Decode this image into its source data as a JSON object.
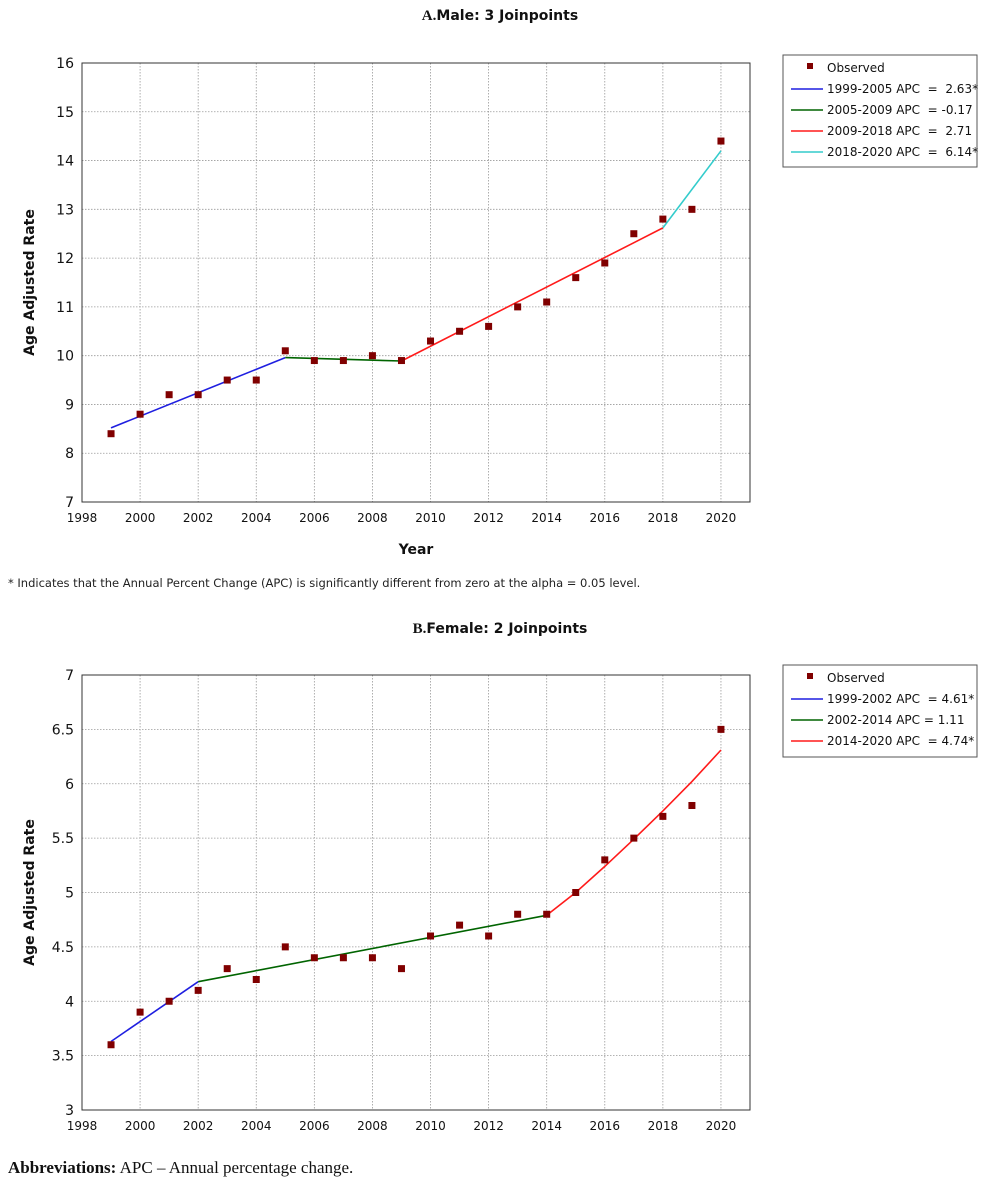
{
  "chart_data": [
    {
      "type": "scatter",
      "panel_letter": "A.",
      "title": "Male: 3 Joinpoints",
      "xlabel": "Year",
      "ylabel": "Age Adjusted Rate",
      "xlim": [
        1998,
        2021
      ],
      "ylim": [
        7,
        16
      ],
      "xticks": [
        1998,
        2000,
        2002,
        2004,
        2006,
        2008,
        2010,
        2012,
        2014,
        2016,
        2018,
        2020
      ],
      "yticks": [
        "7",
        "8",
        "9",
        "10",
        "11",
        "12",
        "13",
        "14",
        "15",
        "16"
      ],
      "grid": true,
      "legend_position": "right",
      "observed": {
        "name": "Observed",
        "color": "#800000",
        "x": [
          1999,
          2000,
          2001,
          2002,
          2003,
          2004,
          2005,
          2006,
          2007,
          2008,
          2009,
          2010,
          2011,
          2012,
          2013,
          2014,
          2015,
          2016,
          2017,
          2018,
          2019,
          2020
        ],
        "y": [
          8.4,
          8.8,
          9.2,
          9.2,
          9.5,
          9.5,
          10.1,
          9.9,
          9.9,
          10.0,
          9.9,
          10.3,
          10.5,
          10.6,
          11.0,
          11.1,
          11.6,
          11.9,
          12.5,
          12.8,
          13.0,
          14.4
        ]
      },
      "series": [
        {
          "name": "1999-2005 APC  =  2.63*",
          "color": "#1f1fe0",
          "x": [
            1999,
            2005
          ],
          "y": [
            8.52,
            9.96
          ]
        },
        {
          "name": "2005-2009 APC  = -0.17",
          "color": "#006400",
          "x": [
            2005,
            2009
          ],
          "y": [
            9.96,
            9.89
          ]
        },
        {
          "name": "2009-2018 APC  =  2.71",
          "color": "#ff1a1a",
          "x": [
            2009,
            2018
          ],
          "y": [
            9.89,
            12.62
          ]
        },
        {
          "name": "2018-2020 APC  =  6.14*",
          "color": "#33cccc",
          "x": [
            2018,
            2020
          ],
          "y": [
            12.62,
            14.2
          ]
        }
      ]
    },
    {
      "type": "scatter",
      "panel_letter": "B.",
      "title": "Female: 2 Joinpoints",
      "xlabel": "",
      "ylabel": "Age Adjusted Rate",
      "xlim": [
        1998,
        2021
      ],
      "ylim": [
        3,
        7
      ],
      "xticks": [
        1998,
        2000,
        2002,
        2004,
        2006,
        2008,
        2010,
        2012,
        2014,
        2016,
        2018,
        2020
      ],
      "yticks": [
        "3",
        "3.5",
        "4",
        "4.5",
        "5",
        "5.5",
        "6",
        "6.5",
        "7"
      ],
      "grid": true,
      "legend_position": "right",
      "observed": {
        "name": "Observed",
        "color": "#800000",
        "x": [
          1999,
          2000,
          2001,
          2002,
          2003,
          2004,
          2005,
          2006,
          2007,
          2008,
          2009,
          2010,
          2011,
          2012,
          2013,
          2014,
          2015,
          2016,
          2017,
          2018,
          2019,
          2020
        ],
        "y": [
          3.6,
          3.9,
          4.0,
          4.1,
          4.3,
          4.2,
          4.5,
          4.4,
          4.4,
          4.4,
          4.3,
          4.6,
          4.7,
          4.6,
          4.8,
          4.8,
          5.0,
          5.3,
          5.5,
          5.7,
          5.8,
          6.5
        ]
      },
      "series": [
        {
          "name": "1999-2002 APC  = 4.61*",
          "color": "#1f1fe0",
          "x": [
            1999,
            2002
          ],
          "y": [
            3.63,
            4.18
          ]
        },
        {
          "name": "2002-2014 APC = 1.11",
          "color": "#006400",
          "x": [
            2002,
            2014
          ],
          "y": [
            4.18,
            4.79
          ]
        },
        {
          "name": "2014-2020 APC  = 4.74*",
          "color": "#ff1a1a",
          "x": [
            2014,
            2015,
            2016,
            2017,
            2018,
            2019,
            2020
          ],
          "y": [
            4.79,
            5.0,
            5.24,
            5.49,
            5.75,
            6.02,
            6.31
          ]
        }
      ]
    }
  ],
  "footnote": "* Indicates that the Annual Percent Change (APC) is significantly different from zero at the alpha = 0.05 level.",
  "abbreviations": {
    "label": "Abbreviations:",
    "text": " APC – Annual percentage change."
  }
}
